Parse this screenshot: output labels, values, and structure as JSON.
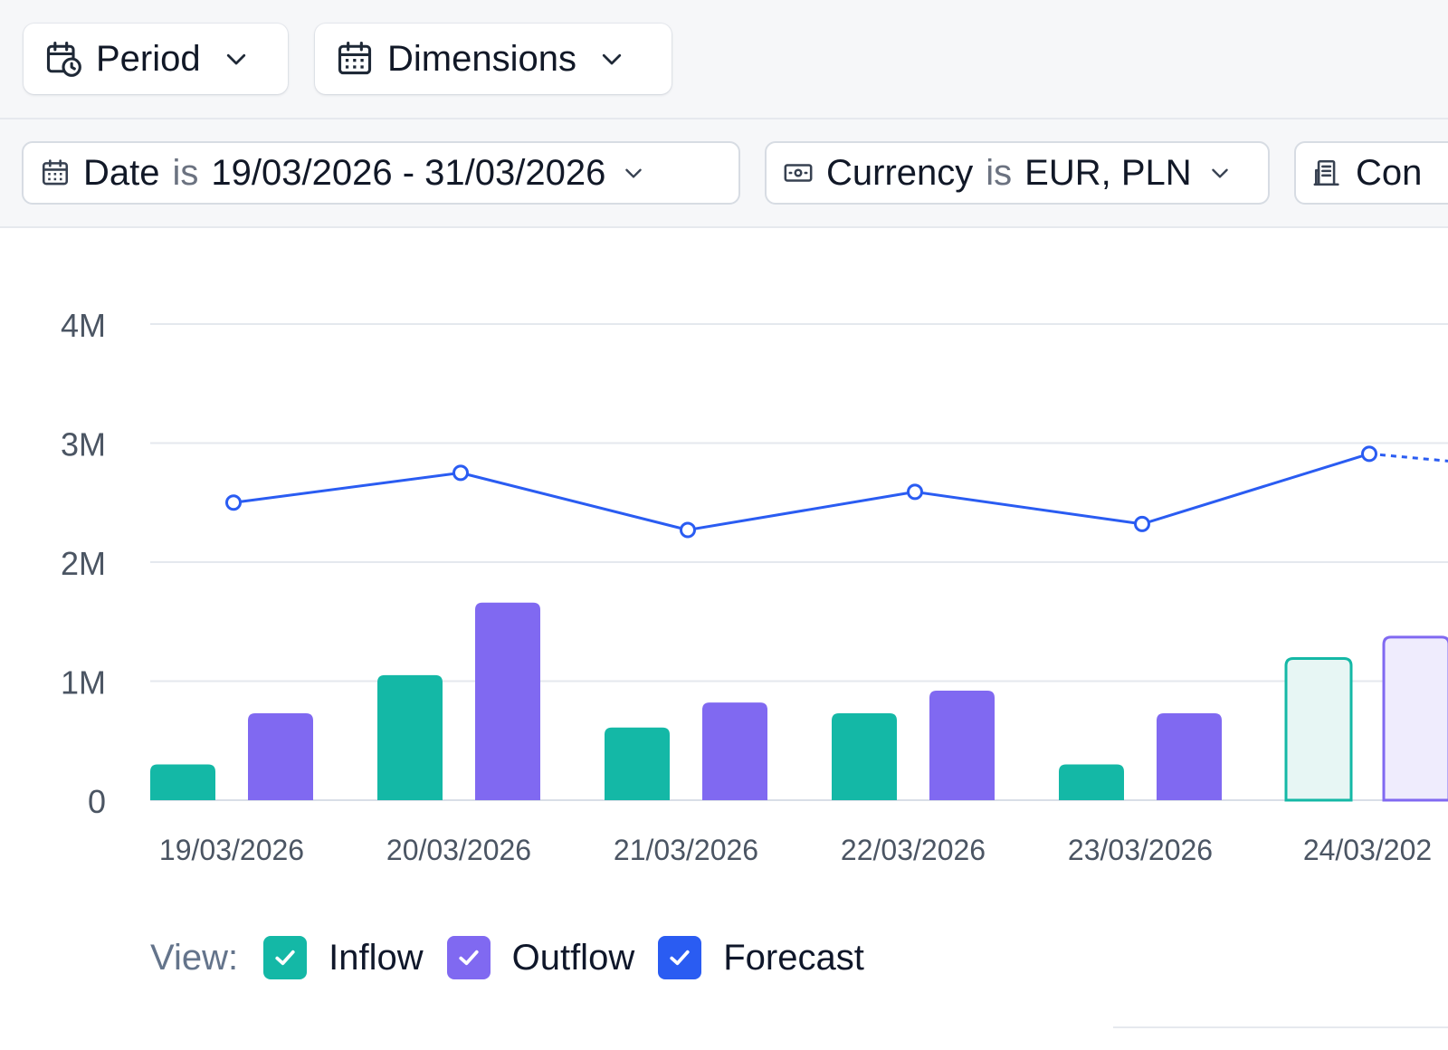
{
  "toolbar": {
    "period_label": "Period",
    "dimensions_label": "Dimensions"
  },
  "filters": [
    {
      "field": "Date",
      "op": "is",
      "value": "19/03/2026 - 31/03/2026",
      "icon": "calendar-icon"
    },
    {
      "field": "Currency",
      "op": "is",
      "value": "EUR, PLN",
      "icon": "banknote-icon"
    },
    {
      "field": "Con",
      "op": "",
      "value": "",
      "icon": "building-icon"
    }
  ],
  "legend": {
    "view_label": "View:",
    "items": [
      {
        "label": "Inflow",
        "color": "#14b8a6",
        "checked": true
      },
      {
        "label": "Outflow",
        "color": "#8069f1",
        "checked": true
      },
      {
        "label": "Forecast",
        "color": "#2a5cf2",
        "checked": true
      }
    ]
  },
  "chart_data": {
    "type": "bar",
    "y_ticks": [
      "0",
      "1M",
      "2M",
      "3M",
      "4M"
    ],
    "ylim": [
      0,
      4000000
    ],
    "grid": true,
    "categories": [
      "19/03/2026",
      "20/03/2026",
      "21/03/2026",
      "22/03/2026",
      "23/03/2026",
      "24/03/202"
    ],
    "series": [
      {
        "name": "Inflow",
        "type": "bar",
        "color": "#14b8a6",
        "values": [
          300000,
          1050000,
          610000,
          730000,
          300000,
          1190000
        ],
        "forecast_from_index": 5
      },
      {
        "name": "Outflow",
        "type": "bar",
        "color": "#8069f1",
        "values": [
          730000,
          1660000,
          820000,
          920000,
          730000,
          1370000
        ],
        "forecast_from_index": 5
      },
      {
        "name": "Forecast",
        "type": "line",
        "color": "#2a5cf2",
        "values": [
          2500000,
          2750000,
          2270000,
          2590000,
          2320000,
          2910000
        ],
        "dashed_after_index": 5
      }
    ]
  }
}
